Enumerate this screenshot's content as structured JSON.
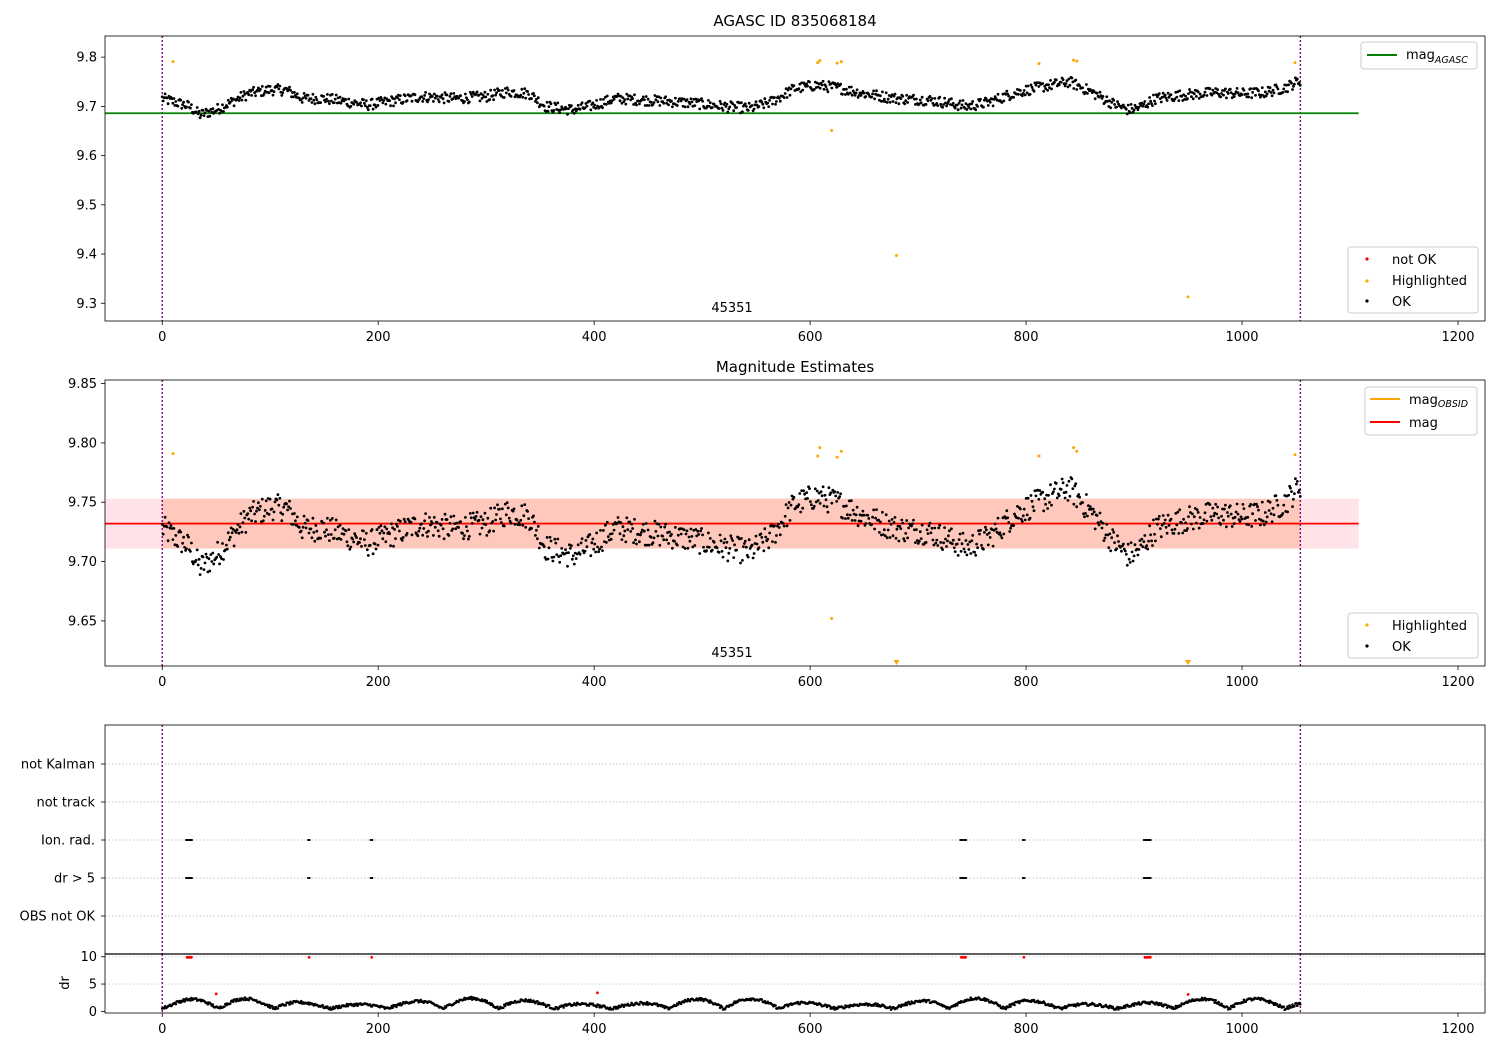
{
  "chart_data": [
    {
      "type": "scatter",
      "title": "AGASC ID 835068184",
      "xlim": [
        -53,
        1225
      ],
      "ylim": [
        9.264,
        9.843
      ],
      "xticks": [
        0,
        200,
        400,
        600,
        800,
        1000,
        1200
      ],
      "yticks": [
        9.3,
        9.4,
        9.5,
        9.6,
        9.7,
        9.8
      ],
      "ytick_decimals": 1,
      "vlines": [
        0,
        1054
      ],
      "annotation": {
        "text": "45351",
        "x": 527,
        "y": 9.28
      },
      "hline": {
        "name": "mag_AGASC",
        "label_main": "mag",
        "label_sub": "AGASC",
        "y": 9.686,
        "x0": -53,
        "x1": 1108,
        "color": "#008000"
      },
      "series": [
        {
          "name": "not OK",
          "color": "#ff0000",
          "points": []
        },
        {
          "name": "Highlighted",
          "color": "#ffa500",
          "points": [
            [
              10,
              9.791
            ],
            [
              607,
              9.789
            ],
            [
              609,
              9.793
            ],
            [
              620,
              9.651
            ],
            [
              625,
              9.788
            ],
            [
              629,
              9.791
            ],
            [
              680,
              9.397
            ],
            [
              812,
              9.787
            ],
            [
              844,
              9.794
            ],
            [
              847,
              9.792
            ],
            [
              950,
              9.313
            ],
            [
              1049,
              9.789
            ]
          ]
        },
        {
          "name": "OK",
          "color": "#000000",
          "series_ref": "ok"
        }
      ],
      "legends": [
        {
          "position": "upper-right",
          "entries": [
            {
              "kind": "line",
              "series": "mag_AGASC"
            }
          ]
        },
        {
          "position": "lower-right",
          "entries": [
            {
              "kind": "point",
              "series": "not OK"
            },
            {
              "kind": "point",
              "series": "Highlighted"
            },
            {
              "kind": "point",
              "series": "OK"
            }
          ]
        }
      ]
    },
    {
      "type": "scatter",
      "title": "Magnitude Estimates",
      "xlim": [
        -53,
        1225
      ],
      "ylim": [
        9.612,
        9.853
      ],
      "xticks": [
        0,
        200,
        400,
        600,
        800,
        1000,
        1200
      ],
      "yticks": [
        9.65,
        9.7,
        9.75,
        9.8,
        9.85
      ],
      "ytick_decimals": 2,
      "vlines": [
        0,
        1054
      ],
      "annotation": {
        "text": "45351",
        "x": 527,
        "y": 9.619
      },
      "bands": [
        {
          "x0": -53,
          "x1": 1108,
          "y0": 9.711,
          "y1": 9.753,
          "color": "#ffc0cb"
        },
        {
          "x0": 0,
          "x1": 1054,
          "y0": 9.711,
          "y1": 9.753,
          "color": "#ffa07a"
        }
      ],
      "lines": [
        {
          "name": "mag_OBSID",
          "label_main": "mag",
          "label_sub": "OBSID",
          "color": "#ffa500",
          "x0": 0,
          "x1": 1054,
          "y": 9.732
        },
        {
          "name": "mag",
          "label_main": "mag",
          "color": "#ff0000",
          "x0": -53,
          "x1": 1108,
          "y": 9.732
        }
      ],
      "series": [
        {
          "name": "Highlighted",
          "color": "#ffa500",
          "points": [
            [
              10,
              9.791
            ],
            [
              607,
              9.789
            ],
            [
              609,
              9.796
            ],
            [
              620,
              9.652
            ],
            [
              625,
              9.788
            ],
            [
              629,
              9.793
            ],
            [
              812,
              9.789
            ],
            [
              844,
              9.796
            ],
            [
              847,
              9.793
            ],
            [
              1049,
              9.79
            ]
          ],
          "offscale_low": [
            680,
            950
          ]
        },
        {
          "name": "OK",
          "color": "#000000",
          "series_ref": "ok"
        }
      ],
      "legends": [
        {
          "position": "upper-right",
          "entries": [
            {
              "kind": "line",
              "series": "mag_OBSID"
            },
            {
              "kind": "line",
              "series": "mag"
            }
          ]
        },
        {
          "position": "lower-right",
          "entries": [
            {
              "kind": "point",
              "series": "Highlighted"
            },
            {
              "kind": "point",
              "series": "OK"
            }
          ]
        }
      ]
    },
    {
      "type": "scatter",
      "title": "",
      "xlim": [
        -53,
        1225
      ],
      "vlines": [
        0,
        1054
      ],
      "flag_rows": [
        "not Kalman",
        "not track",
        "Ion. rad.",
        "dr > 5",
        "OBS not OK"
      ],
      "flag_events": {
        "Ion. rad.": [
          [
            22,
            28
          ],
          [
            135,
            137
          ],
          [
            193,
            195
          ],
          [
            739,
            745
          ],
          [
            797,
            799
          ],
          [
            909,
            916
          ]
        ],
        "dr > 5": [
          [
            22,
            28
          ],
          [
            135,
            137
          ],
          [
            193,
            195
          ],
          [
            739,
            745
          ],
          [
            797,
            799
          ],
          [
            909,
            916
          ]
        ]
      }
    },
    {
      "type": "scatter",
      "title": "",
      "xlim": [
        -53,
        1225
      ],
      "ylim": [
        -0.3,
        10.5
      ],
      "yticks": [
        0,
        5,
        10
      ],
      "xticks": [
        0,
        200,
        400,
        600,
        800,
        1000,
        1200
      ],
      "ylabel": "dr",
      "vlines": [
        0,
        1054
      ],
      "series": [
        {
          "name": "dr",
          "color": "#000000",
          "series_ref": "dr"
        },
        {
          "name": "dr > 5",
          "color": "#ff0000",
          "points": [
            [
              23,
              9.9
            ],
            [
              24,
              9.9
            ],
            [
              25,
              9.9
            ],
            [
              26,
              9.9
            ],
            [
              27,
              9.9
            ],
            [
              136,
              9.9
            ],
            [
              194,
              9.9
            ],
            [
              740,
              9.9
            ],
            [
              741,
              9.9
            ],
            [
              742,
              9.9
            ],
            [
              743,
              9.9
            ],
            [
              744,
              9.9
            ],
            [
              798,
              9.9
            ],
            [
              910,
              9.9
            ],
            [
              911,
              9.9
            ],
            [
              912,
              9.9
            ],
            [
              913,
              9.9
            ],
            [
              914,
              9.9
            ],
            [
              915,
              9.9
            ],
            [
              50,
              3.2
            ],
            [
              403,
              3.4
            ],
            [
              950,
              3.1
            ]
          ]
        }
      ]
    }
  ]
}
